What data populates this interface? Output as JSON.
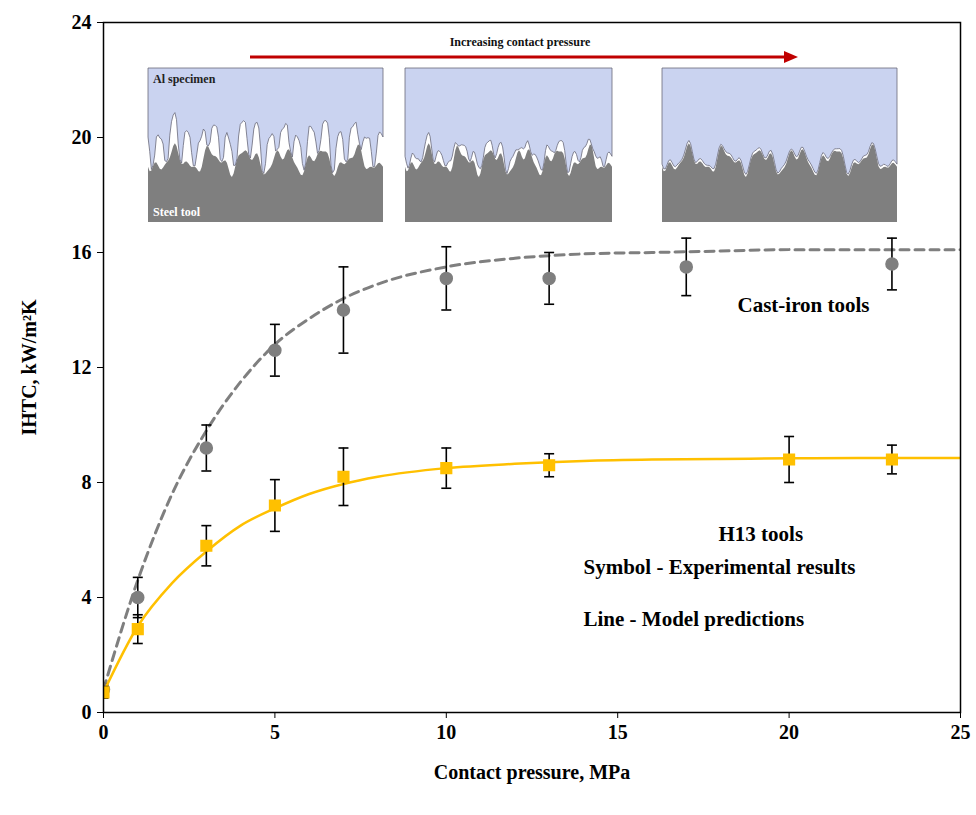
{
  "chart_data": {
    "type": "scatter",
    "x_label": "Contact pressure, MPa",
    "y_label": "IHTC, kW/m²K",
    "xlim": [
      0,
      25
    ],
    "xticks": [
      0,
      5,
      10,
      15,
      20,
      25
    ],
    "ylim": [
      0,
      24
    ],
    "yticks": [
      0,
      4,
      8,
      12,
      16,
      20,
      24
    ],
    "grid": false,
    "annotations": [
      "Symbol - Experimental results",
      "Line - Model predictions"
    ],
    "inset": {
      "arrow_label": "Increasing contact pressure",
      "upper_label": "Al specimen",
      "lower_label": "Steel tool"
    },
    "series": [
      {
        "name": "Cast-iron tools",
        "color": "#7f7f7f",
        "marker": "circle",
        "x": [
          0,
          1,
          3,
          5,
          7,
          10,
          13,
          17,
          23
        ],
        "values": [
          0.8,
          4.0,
          9.2,
          12.6,
          14.0,
          15.1,
          15.1,
          15.5,
          15.6
        ],
        "error_low": [
          0.6,
          3.3,
          8.4,
          11.7,
          12.5,
          14.0,
          14.2,
          14.5,
          14.7
        ],
        "error_high": [
          1.0,
          4.7,
          10.0,
          13.5,
          15.5,
          16.2,
          16.0,
          16.5,
          16.5
        ],
        "model": {
          "line_style": "dashed",
          "x": [
            0,
            1,
            2,
            3,
            4,
            5,
            6,
            7,
            8,
            10,
            12,
            14,
            16,
            18,
            20,
            22,
            25
          ],
          "values": [
            0.8,
            4.6,
            7.6,
            9.8,
            11.5,
            12.8,
            13.7,
            14.4,
            14.9,
            15.5,
            15.8,
            15.95,
            16.0,
            16.05,
            16.1,
            16.1,
            16.1
          ]
        }
      },
      {
        "name": "H13 tools",
        "color": "#ffc000",
        "marker": "square",
        "x": [
          0,
          1,
          3,
          5,
          7,
          10,
          13,
          20,
          23
        ],
        "values": [
          0.7,
          2.9,
          5.8,
          7.2,
          8.2,
          8.5,
          8.6,
          8.8,
          8.8
        ],
        "error_low": [
          0.5,
          2.4,
          5.1,
          6.3,
          7.2,
          7.8,
          8.2,
          8.0,
          8.3
        ],
        "error_high": [
          0.9,
          3.4,
          6.5,
          8.1,
          9.2,
          9.2,
          9.0,
          9.6,
          9.3
        ],
        "model": {
          "line_style": "solid",
          "x": [
            0,
            1,
            2,
            3,
            4,
            5,
            6,
            7,
            8,
            10,
            12,
            14,
            16,
            18,
            20,
            22,
            25
          ],
          "values": [
            0.7,
            3.0,
            4.5,
            5.6,
            6.5,
            7.1,
            7.6,
            7.95,
            8.2,
            8.5,
            8.65,
            8.75,
            8.8,
            8.82,
            8.84,
            8.85,
            8.85
          ]
        }
      }
    ]
  }
}
